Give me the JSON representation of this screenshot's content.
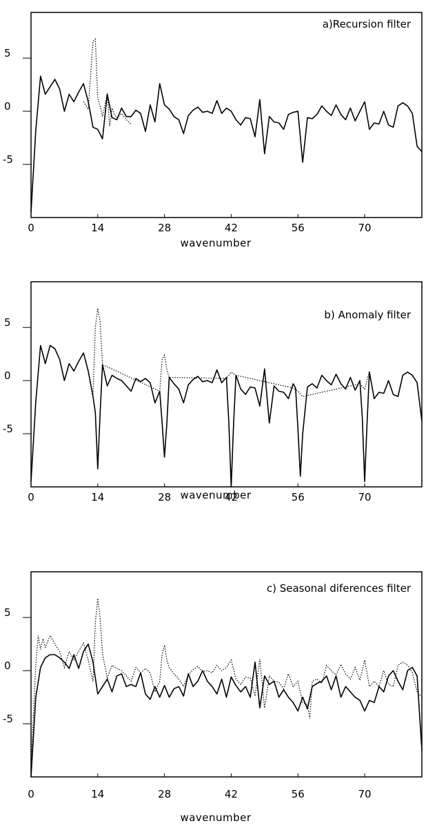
{
  "chart_data": [
    {
      "type": "line",
      "title": "a)Recursion filter",
      "xlabel": "wavenumber",
      "ylabel": "",
      "xlim": [
        0,
        82
      ],
      "ylim": [
        -10,
        9.3
      ],
      "x_ticks": [
        "0",
        "14",
        "28",
        "42",
        "56",
        "70"
      ],
      "y_ticks": [
        "5",
        "0",
        "-5"
      ],
      "grid": false,
      "series": [
        {
          "style": "solid",
          "x": [
            0,
            1,
            2,
            3,
            5,
            6,
            7,
            8,
            9,
            10,
            11,
            12,
            13,
            14,
            15,
            16,
            17,
            18,
            19,
            20,
            21,
            22,
            23,
            24,
            25,
            26,
            27,
            28,
            29,
            30,
            31,
            32,
            33,
            34,
            35,
            36,
            37,
            38,
            39,
            40,
            41,
            42,
            43,
            44,
            45,
            46,
            47,
            48,
            49,
            50,
            51,
            52,
            53,
            54,
            55,
            56,
            57,
            58,
            59,
            60,
            61,
            62,
            63,
            64,
            65,
            66,
            67,
            68,
            69,
            70,
            71,
            72,
            73,
            74,
            75,
            76,
            77,
            78,
            79,
            80,
            81,
            82
          ],
          "y": [
            -9.5,
            -1.8,
            3.3,
            1.6,
            3.0,
            2.1,
            0.0,
            1.6,
            0.9,
            1.8,
            2.6,
            0.9,
            -1.5,
            -1.7,
            -2.6,
            1.6,
            -0.6,
            -0.8,
            0.3,
            -0.5,
            -0.5,
            0.1,
            -0.2,
            -1.9,
            0.6,
            -1.0,
            2.6,
            0.6,
            0.2,
            -0.5,
            -0.8,
            -2.1,
            -0.4,
            0.1,
            0.4,
            -0.1,
            0.0,
            -0.2,
            1.0,
            -0.2,
            0.3,
            0.0,
            -0.8,
            -1.3,
            -0.6,
            -0.7,
            -2.4,
            1.1,
            -4.0,
            -0.5,
            -1.0,
            -1.1,
            -1.7,
            -0.3,
            -0.1,
            0.0,
            -4.8,
            -0.6,
            -0.7,
            -0.3,
            0.5,
            0.0,
            -0.4,
            0.6,
            -0.3,
            -0.8,
            0.3,
            -0.9,
            0.0,
            0.9,
            -1.7,
            -1.1,
            -1.2,
            0.0,
            -1.3,
            -1.5,
            0.5,
            0.8,
            0.5,
            -0.2,
            -3.3,
            -3.8
          ]
        },
        {
          "style": "dotted",
          "x": [
            11,
            12,
            13,
            13.5,
            14,
            14.5,
            15,
            15.5,
            16,
            16.5,
            17,
            17.5,
            18,
            19,
            20,
            21
          ],
          "y": [
            0.9,
            0.2,
            6.6,
            6.8,
            1.2,
            0.5,
            -0.5,
            0.6,
            1.7,
            -1.4,
            0.3,
            -0.3,
            -0.6,
            -0.2,
            -0.8,
            -1.2
          ]
        }
      ]
    },
    {
      "type": "line",
      "title": "b) Anomaly filter",
      "xlabel": "wavenumber",
      "ylabel": "",
      "xlim": [
        0,
        82
      ],
      "ylim": [
        -10,
        9.3
      ],
      "x_ticks": [
        "0",
        "14",
        "28",
        "42",
        "56",
        "70"
      ],
      "y_ticks": [
        "5",
        "0",
        "-5"
      ],
      "grid": false,
      "series": [
        {
          "style": "solid",
          "x": [
            0,
            1,
            2,
            3,
            4,
            5,
            6,
            7,
            8,
            9,
            10,
            11,
            12,
            13,
            13.5,
            14,
            14.5,
            15,
            16,
            17,
            18,
            19,
            20,
            21,
            22,
            23,
            24,
            25,
            26,
            27,
            27.5,
            28,
            28.5,
            29,
            30,
            31,
            32,
            33,
            34,
            35,
            36,
            37,
            38,
            39,
            40,
            41,
            41.5,
            42,
            42.5,
            43,
            44,
            45,
            46,
            47,
            48,
            49,
            50,
            51,
            52,
            53,
            54,
            55,
            55.5,
            56,
            56.5,
            57,
            58,
            59,
            60,
            61,
            62,
            63,
            64,
            65,
            66,
            67,
            68,
            69,
            69.5,
            70,
            70.5,
            71,
            72,
            73,
            74,
            75,
            76,
            77,
            78,
            79,
            80,
            81,
            82
          ],
          "y": [
            -9.5,
            -2.0,
            3.3,
            1.6,
            3.3,
            3.0,
            2.0,
            0.0,
            1.6,
            0.9,
            1.8,
            2.6,
            0.9,
            -1.5,
            -3.0,
            -8.3,
            -3.0,
            1.5,
            -0.5,
            0.5,
            0.2,
            0.0,
            -0.5,
            -1.0,
            0.2,
            -0.1,
            0.2,
            -0.2,
            -2.1,
            -1.0,
            -4.0,
            -7.2,
            -4.0,
            0.3,
            -0.3,
            -0.8,
            -2.1,
            -0.4,
            0.1,
            0.4,
            -0.1,
            0.0,
            -0.2,
            1.0,
            -0.2,
            0.3,
            -4.0,
            -10.0,
            -4.0,
            0.5,
            -0.8,
            -1.3,
            -0.6,
            -0.7,
            -2.4,
            1.1,
            -4.0,
            -0.5,
            -1.0,
            -1.1,
            -1.7,
            -0.3,
            -0.7,
            -4.5,
            -9.0,
            -5.0,
            -0.6,
            -0.3,
            -0.7,
            0.5,
            0.0,
            -0.4,
            0.6,
            -0.3,
            -0.8,
            0.3,
            -0.9,
            0.0,
            -3.5,
            -9.5,
            -4.0,
            0.8,
            -1.7,
            -1.1,
            -1.2,
            0.0,
            -1.3,
            -1.5,
            0.5,
            0.8,
            0.5,
            -0.2,
            -3.8
          ]
        },
        {
          "style": "dotted",
          "x": [
            13,
            13.5,
            14,
            14.5,
            15,
            27,
            27.5,
            28,
            28.5,
            29,
            41,
            42,
            43,
            55,
            56,
            57,
            69,
            70,
            71
          ],
          "y": [
            -1.5,
            5.0,
            6.8,
            5.5,
            1.5,
            -1.0,
            2.0,
            2.4,
            1.0,
            0.3,
            0.2,
            0.8,
            0.5,
            -0.7,
            -1.0,
            -1.5,
            -0.3,
            -0.8,
            0.9
          ]
        }
      ]
    },
    {
      "type": "line",
      "title": "c) Seasonal diferences filter",
      "xlabel": "wavenumber",
      "ylabel": "",
      "xlim": [
        0,
        82
      ],
      "ylim": [
        -10,
        9.3
      ],
      "x_ticks": [
        "0",
        "14",
        "28",
        "42",
        "56",
        "70"
      ],
      "y_ticks": [
        "5",
        "0",
        "-5"
      ],
      "grid": false,
      "series": [
        {
          "style": "solid",
          "x": [
            0,
            1,
            2,
            3,
            4,
            5,
            6,
            7,
            8,
            9,
            10,
            11,
            12,
            13,
            14,
            15,
            16,
            17,
            18,
            19,
            20,
            21,
            22,
            23,
            24,
            25,
            26,
            27,
            28,
            29,
            30,
            31,
            32,
            33,
            34,
            35,
            36,
            37,
            38,
            39,
            40,
            41,
            42,
            43,
            44,
            45,
            46,
            47,
            48,
            49,
            50,
            51,
            52,
            53,
            54,
            55,
            56,
            57,
            58,
            59,
            60,
            61,
            62,
            63,
            64,
            65,
            66,
            67,
            68,
            69,
            70,
            71,
            72,
            73,
            74,
            75,
            76,
            77,
            78,
            79,
            80,
            81,
            82
          ],
          "y": [
            -10.0,
            -2.5,
            0.3,
            1.2,
            1.5,
            1.5,
            1.2,
            0.8,
            0.2,
            1.5,
            0.2,
            1.8,
            2.5,
            0.8,
            -2.2,
            -1.5,
            -0.8,
            -2.0,
            -0.5,
            -0.3,
            -1.5,
            -1.3,
            -1.5,
            -0.2,
            -2.2,
            -2.7,
            -1.5,
            -2.5,
            -1.4,
            -2.5,
            -1.7,
            -1.5,
            -2.4,
            -0.3,
            -1.5,
            -1.0,
            0.0,
            -1.0,
            -1.5,
            -2.2,
            -0.8,
            -2.5,
            -0.6,
            -1.4,
            -2.0,
            -1.5,
            -2.5,
            0.8,
            -3.5,
            -0.5,
            -1.3,
            -1.0,
            -2.5,
            -1.8,
            -2.5,
            -3.0,
            -3.8,
            -2.5,
            -3.6,
            -1.5,
            -1.2,
            -1.0,
            -0.5,
            -1.8,
            -0.5,
            -2.5,
            -1.5,
            -2.0,
            -2.5,
            -2.8,
            -3.8,
            -2.8,
            -3.0,
            -1.5,
            -2.0,
            -0.5,
            0.0,
            -1.0,
            -1.8,
            0.0,
            0.3,
            -0.5,
            -7.5
          ]
        },
        {
          "style": "dotted",
          "x": [
            0,
            1,
            1.5,
            2,
            2.5,
            3,
            4,
            5,
            6,
            7,
            8,
            9,
            10,
            11,
            12,
            13,
            13.5,
            14,
            14.5,
            15,
            16,
            17,
            18,
            19,
            20,
            21,
            22,
            23,
            24,
            25,
            26,
            27,
            27.5,
            28,
            28.5,
            29,
            30,
            31,
            32,
            33,
            34,
            35,
            36,
            37,
            38,
            39,
            40,
            41,
            42,
            43,
            44,
            45,
            46,
            47,
            48,
            49,
            50,
            51,
            52,
            53,
            54,
            55,
            56,
            57,
            58,
            58.5,
            59,
            60,
            61,
            62,
            63,
            64,
            65,
            66,
            67,
            68,
            69,
            70,
            71,
            72,
            73,
            74,
            75,
            76,
            77,
            78,
            79,
            80,
            81,
            82
          ],
          "y": [
            -8.8,
            0.5,
            3.3,
            2.0,
            3.0,
            2.2,
            3.3,
            2.5,
            1.8,
            0.3,
            1.8,
            1.0,
            1.8,
            2.6,
            1.0,
            -1.0,
            4.5,
            6.8,
            5.0,
            1.6,
            -0.7,
            0.5,
            0.2,
            0.0,
            -0.5,
            -1.0,
            0.3,
            -0.2,
            0.2,
            -0.2,
            -2.0,
            -1.0,
            1.5,
            2.4,
            1.0,
            0.3,
            -0.3,
            -0.8,
            -1.5,
            -0.4,
            0.1,
            0.4,
            -0.1,
            0.0,
            -0.2,
            0.5,
            0.0,
            0.3,
            1.0,
            -0.8,
            -1.3,
            -0.6,
            -0.7,
            -2.4,
            1.1,
            -3.5,
            -0.5,
            -1.0,
            -1.1,
            -1.7,
            -0.3,
            -1.5,
            -1.0,
            -3.0,
            -3.2,
            -4.5,
            -1.0,
            -0.8,
            -1.2,
            0.5,
            0.0,
            -0.4,
            0.6,
            -0.3,
            -0.8,
            0.3,
            -0.9,
            1.0,
            -1.5,
            -1.0,
            -1.5,
            0.0,
            -1.3,
            -1.5,
            0.5,
            0.8,
            0.5,
            -0.2,
            -2.0,
            -2.5
          ]
        }
      ]
    }
  ]
}
